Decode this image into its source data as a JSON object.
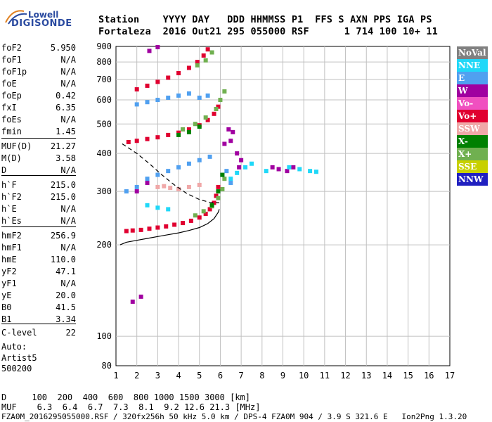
{
  "logo": {
    "line1": "Lowell",
    "line2": "DIGISONDE"
  },
  "header": {
    "labels": "Station    YYYY DAY   DDD HHMMSS P1  FFS S AXN PPS IGA PS",
    "values": "Fortaleza  2016 Out21 295 055000 RSF      1 714 100 10+ 11"
  },
  "params": [
    {
      "label": "foF2",
      "value": "5.950"
    },
    {
      "label": "foF1",
      "value": "N/A"
    },
    {
      "label": "foF1p",
      "value": "N/A"
    },
    {
      "label": "foE",
      "value": "N/A"
    },
    {
      "label": "foEp",
      "value": "0.42"
    },
    {
      "label": "fxI",
      "value": "6.35"
    },
    {
      "label": "foEs",
      "value": "N/A"
    },
    {
      "label": "fmin",
      "value": "1.45"
    },
    {
      "label": "MUF(D)",
      "value": "21.27"
    },
    {
      "label": "M(D)",
      "value": "3.58"
    },
    {
      "label": "D",
      "value": "N/A"
    },
    {
      "label": "h`F",
      "value": "215.0"
    },
    {
      "label": "h`F2",
      "value": "215.0"
    },
    {
      "label": "h`E",
      "value": "N/A"
    },
    {
      "label": "h`Es",
      "value": "N/A"
    },
    {
      "label": "hmF2",
      "value": "256.9"
    },
    {
      "label": "hmF1",
      "value": "N/A"
    },
    {
      "label": "hmE",
      "value": "110.0"
    },
    {
      "label": "yF2",
      "value": "47.1"
    },
    {
      "label": "yF1",
      "value": "N/A"
    },
    {
      "label": "yE",
      "value": "20.0"
    },
    {
      "label": "B0",
      "value": "41.5"
    },
    {
      "label": "B1",
      "value": "3.34"
    },
    {
      "label": "C-level",
      "value": "22"
    }
  ],
  "auto": {
    "line1": "Auto:",
    "line2": "Artist5",
    "line3": "500200"
  },
  "legend": [
    {
      "label": "NoVal",
      "color": "#808080"
    },
    {
      "label": "NNE",
      "color": "#20d8f8"
    },
    {
      "label": "E",
      "color": "#50a0f0"
    },
    {
      "label": "W",
      "color": "#a000a0"
    },
    {
      "label": "Vo-",
      "color": "#f050c0"
    },
    {
      "label": "Vo+",
      "color": "#e00030"
    },
    {
      "label": "SSW",
      "color": "#f0a8a8"
    },
    {
      "label": "X-",
      "color": "#008000"
    },
    {
      "label": "X+",
      "color": "#70b050"
    },
    {
      "label": "SSE",
      "color": "#c8d000"
    },
    {
      "label": "NNW",
      "color": "#2020c0"
    }
  ],
  "muf_table": {
    "d_line": "D     100  200  400  600  800 1000 1500 3000 [km]",
    "muf_line": "MUF    6.3  6.4  6.7  7.3  8.1  9.2 12.6 21.3 [MHz]"
  },
  "footer": "FZA0M_2016295055000.RSF / 320fx256h 50 kHz 5.0 km / DPS-4 FZA0M 904 / 3.9 S 321.6 E   Ion2Png 1.3.20",
  "chart_data": {
    "type": "scatter",
    "xlim": [
      1,
      17
    ],
    "ylim": [
      80,
      900
    ],
    "y_scale": "log",
    "grid": true,
    "xticks": [
      1,
      2,
      3,
      4,
      5,
      6,
      7,
      8,
      9,
      10,
      11,
      12,
      13,
      14,
      15,
      16,
      17
    ],
    "yticks": [
      80,
      100,
      200,
      300,
      400,
      500,
      600,
      700,
      800,
      900
    ],
    "series": [
      {
        "name": "Vo+",
        "color": "#e00030",
        "points": [
          [
            1.5,
            222
          ],
          [
            1.8,
            223
          ],
          [
            2.2,
            224
          ],
          [
            2.6,
            226
          ],
          [
            3.0,
            228
          ],
          [
            3.4,
            230
          ],
          [
            3.8,
            233
          ],
          [
            4.2,
            236
          ],
          [
            4.6,
            240
          ],
          [
            5.0,
            246
          ],
          [
            5.3,
            253
          ],
          [
            5.5,
            262
          ],
          [
            5.7,
            275
          ],
          [
            5.8,
            290
          ],
          [
            5.9,
            310
          ],
          [
            1.6,
            436
          ],
          [
            2.0,
            440
          ],
          [
            2.5,
            446
          ],
          [
            3.0,
            452
          ],
          [
            3.5,
            460
          ],
          [
            4.0,
            468
          ],
          [
            4.5,
            480
          ],
          [
            5.0,
            495
          ],
          [
            5.4,
            515
          ],
          [
            5.7,
            540
          ],
          [
            5.9,
            570
          ],
          [
            2.0,
            650
          ],
          [
            2.5,
            668
          ],
          [
            3.0,
            688
          ],
          [
            3.5,
            710
          ],
          [
            4.0,
            735
          ],
          [
            4.5,
            765
          ],
          [
            4.9,
            800
          ],
          [
            5.2,
            840
          ],
          [
            5.4,
            880
          ]
        ]
      },
      {
        "name": "X+",
        "color": "#70b050",
        "points": [
          [
            4.8,
            250
          ],
          [
            5.2,
            258
          ],
          [
            5.6,
            268
          ],
          [
            5.9,
            285
          ],
          [
            6.1,
            305
          ],
          [
            6.2,
            330
          ],
          [
            4.2,
            480
          ],
          [
            4.8,
            500
          ],
          [
            5.3,
            525
          ],
          [
            5.8,
            560
          ],
          [
            6.0,
            600
          ],
          [
            6.2,
            640
          ],
          [
            4.9,
            780
          ],
          [
            5.3,
            810
          ],
          [
            5.6,
            860
          ]
        ]
      },
      {
        "name": "W",
        "color": "#a000a0",
        "points": [
          [
            6.2,
            430
          ],
          [
            6.4,
            480
          ],
          [
            6.5,
            440
          ],
          [
            6.6,
            470
          ],
          [
            6.8,
            400
          ],
          [
            6.9,
            360
          ],
          [
            7.0,
            380
          ],
          [
            8.5,
            360
          ],
          [
            8.8,
            355
          ],
          [
            9.2,
            350
          ],
          [
            9.5,
            360
          ],
          [
            1.8,
            130
          ],
          [
            2.2,
            135
          ],
          [
            3.0,
            895
          ],
          [
            2.6,
            870
          ],
          [
            2.0,
            300
          ],
          [
            2.5,
            320
          ]
        ]
      },
      {
        "name": "NNE",
        "color": "#20d8f8",
        "points": [
          [
            6.5,
            330
          ],
          [
            6.8,
            345
          ],
          [
            7.2,
            360
          ],
          [
            7.5,
            370
          ],
          [
            8.2,
            350
          ],
          [
            9.3,
            360
          ],
          [
            9.8,
            355
          ],
          [
            10.3,
            350
          ],
          [
            10.6,
            348
          ],
          [
            2.5,
            270
          ],
          [
            3.0,
            265
          ],
          [
            3.5,
            262
          ]
        ]
      },
      {
        "name": "E",
        "color": "#50a0f0",
        "points": [
          [
            1.5,
            300
          ],
          [
            2.0,
            310
          ],
          [
            2.5,
            330
          ],
          [
            3.0,
            340
          ],
          [
            3.5,
            350
          ],
          [
            4.0,
            360
          ],
          [
            4.5,
            370
          ],
          [
            5.0,
            380
          ],
          [
            5.5,
            390
          ],
          [
            2.0,
            580
          ],
          [
            2.5,
            590
          ],
          [
            3.0,
            600
          ],
          [
            3.5,
            610
          ],
          [
            4.0,
            620
          ],
          [
            4.5,
            630
          ],
          [
            5.0,
            610
          ],
          [
            5.4,
            620
          ],
          [
            6.1,
            340
          ],
          [
            6.3,
            350
          ],
          [
            6.5,
            320
          ]
        ]
      },
      {
        "name": "SSW",
        "color": "#f0a8a8",
        "points": [
          [
            3.0,
            310
          ],
          [
            3.3,
            312
          ],
          [
            3.6,
            308
          ],
          [
            4.0,
            305
          ],
          [
            4.5,
            310
          ],
          [
            5.0,
            315
          ]
        ]
      },
      {
        "name": "X-",
        "color": "#008000",
        "points": [
          [
            5.6,
            270
          ],
          [
            5.9,
            300
          ],
          [
            6.1,
            340
          ],
          [
            4.0,
            460
          ],
          [
            4.5,
            470
          ],
          [
            5.0,
            490
          ]
        ]
      }
    ],
    "curves": [
      {
        "name": "profile",
        "style": "solid",
        "points": [
          [
            1.2,
            200
          ],
          [
            1.5,
            204
          ],
          [
            2.0,
            207
          ],
          [
            2.5,
            210
          ],
          [
            3.0,
            213
          ],
          [
            3.5,
            216
          ],
          [
            4.0,
            219
          ],
          [
            4.5,
            223
          ],
          [
            5.0,
            228
          ],
          [
            5.4,
            235
          ],
          [
            5.7,
            244
          ],
          [
            5.9,
            256
          ],
          [
            5.95,
            262
          ]
        ]
      },
      {
        "name": "model",
        "style": "dashed",
        "points": [
          [
            1.3,
            430
          ],
          [
            2.0,
            400
          ],
          [
            2.6,
            370
          ],
          [
            3.2,
            340
          ],
          [
            3.8,
            315
          ],
          [
            4.4,
            295
          ],
          [
            5.0,
            282
          ],
          [
            5.5,
            276
          ],
          [
            5.95,
            275
          ]
        ]
      }
    ]
  }
}
